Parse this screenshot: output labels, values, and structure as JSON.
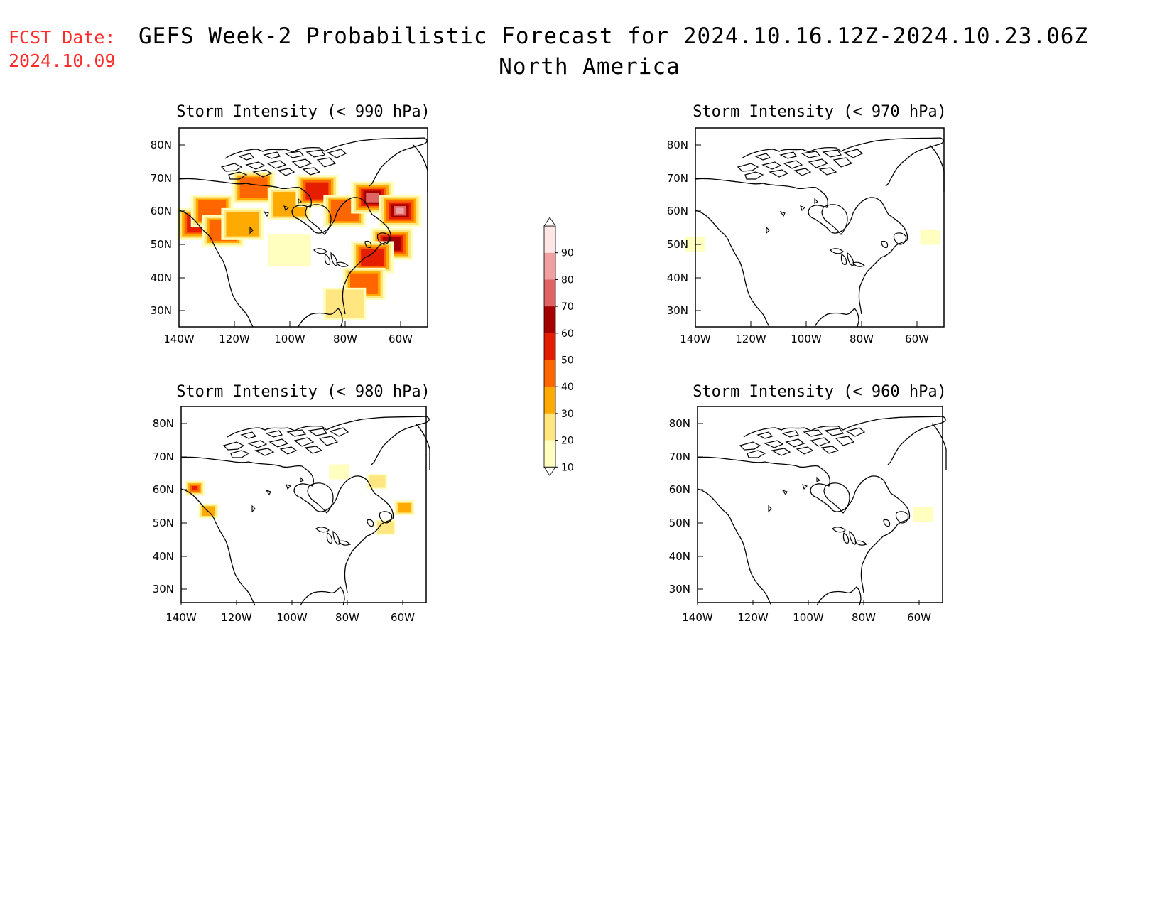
{
  "header": {
    "fcst_label": "FCST Date:",
    "fcst_date": "2024.10.09",
    "title": "GEFS Week-2 Probabilistic Forecast for 2024.10.16.12Z-2024.10.23.06Z",
    "subtitle": "North America"
  },
  "panels": [
    {
      "title": "Storm Intensity (< 990 hPa)"
    },
    {
      "title": "Storm Intensity (< 970 hPa)"
    },
    {
      "title": "Storm Intensity (< 980 hPa)"
    },
    {
      "title": "Storm Intensity (< 960 hPa)"
    }
  ],
  "axes": {
    "lon_labels": [
      "140W",
      "120W",
      "100W",
      "80W",
      "60W"
    ],
    "lat_labels": [
      "80N",
      "70N",
      "60N",
      "50N",
      "40N",
      "30N"
    ]
  },
  "colorbar": {
    "levels": [
      "10",
      "20",
      "30",
      "40",
      "50",
      "60",
      "70",
      "80",
      "90"
    ],
    "colors": [
      "#ffffc0",
      "#ffe680",
      "#ffaa00",
      "#ff6600",
      "#e61e00",
      "#a50000",
      "#e06464",
      "#f0a0a0",
      "#ffe6e6",
      "#ffffff"
    ]
  },
  "map_data": {
    "projection": "polar-stereographic",
    "extent": {
      "lon": [
        -140,
        -50
      ],
      "lat": [
        25,
        85
      ]
    },
    "panel_990": [
      {
        "lon": -133,
        "lat": 56,
        "prob": 50
      },
      {
        "lon": -128,
        "lat": 60,
        "prob": 40
      },
      {
        "lon": -124,
        "lat": 54,
        "prob": 40
      },
      {
        "lon": -117,
        "lat": 56,
        "prob": 30
      },
      {
        "lon": -113,
        "lat": 67,
        "prob": 40
      },
      {
        "lon": -100,
        "lat": 62,
        "prob": 30
      },
      {
        "lon": -90,
        "lat": 66,
        "prob": 50
      },
      {
        "lon": -80,
        "lat": 60,
        "prob": 40
      },
      {
        "lon": -70,
        "lat": 64,
        "prob": 70
      },
      {
        "lon": -60,
        "lat": 60,
        "prob": 80
      },
      {
        "lon": -63,
        "lat": 50,
        "prob": 60
      },
      {
        "lon": -70,
        "lat": 46,
        "prob": 50
      },
      {
        "lon": -100,
        "lat": 48,
        "prob": 10
      },
      {
        "lon": -73,
        "lat": 38,
        "prob": 40
      },
      {
        "lon": -80,
        "lat": 32,
        "prob": 20
      }
    ],
    "panel_980": [
      {
        "lon": -135,
        "lat": 60,
        "prob": 50
      },
      {
        "lon": -130,
        "lat": 53,
        "prob": 30
      },
      {
        "lon": -82,
        "lat": 65,
        "prob": 10
      },
      {
        "lon": -68,
        "lat": 62,
        "prob": 20
      },
      {
        "lon": -58,
        "lat": 54,
        "prob": 30
      },
      {
        "lon": -65,
        "lat": 48,
        "prob": 20
      }
    ],
    "panel_970": [
      {
        "lon": -55,
        "lat": 52,
        "prob": 10
      },
      {
        "lon": -140,
        "lat": 50,
        "prob": 10
      }
    ],
    "panel_960": [
      {
        "lon": -57,
        "lat": 52,
        "prob": 10
      }
    ]
  }
}
